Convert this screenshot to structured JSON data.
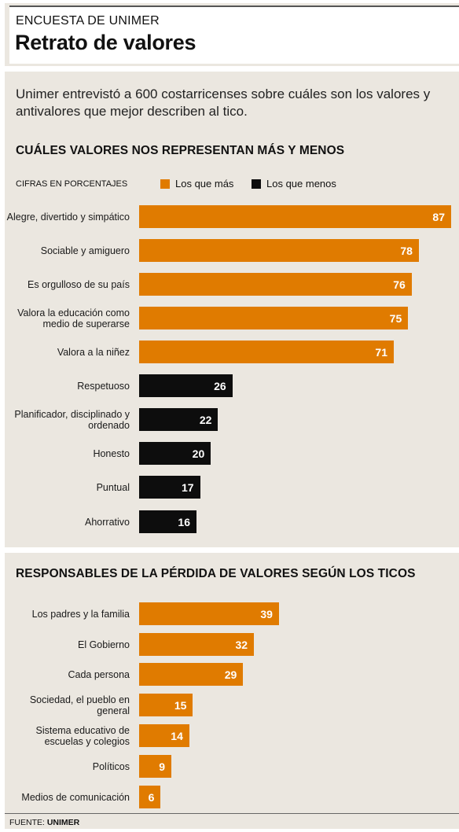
{
  "header": {
    "kicker": "ENCUESTA DE UNIMER",
    "title": "Retrato de valores"
  },
  "intro": "Unimer entrevistó a 600 costarricenses sobre cuáles son los valores y antivalores que mejor describen al tico.",
  "colors": {
    "mas": "#e07b00",
    "menos": "#0d0d0d",
    "panel": "#ebe7e0"
  },
  "chart_data": [
    {
      "type": "bar",
      "orientation": "horizontal",
      "title": "CUÁLES VALORES NOS REPRESENTAN MÁS Y MENOS",
      "note": "CIFRAS EN PORCENTAJES",
      "legend": [
        "Los que más",
        "Los que menos"
      ],
      "legend_placement": "top",
      "xlim": [
        0,
        87
      ],
      "categories": [
        "Alegre, divertido y simpático",
        "Sociable y amiguero",
        "Es orgulloso de su país",
        "Valora la educación como medio de superarse",
        "Valora a la niñez",
        "Respetuoso",
        "Planificador, disciplinado y ordenado",
        "Honesto",
        "Puntual",
        "Ahorrativo"
      ],
      "values": [
        87,
        78,
        76,
        75,
        71,
        26,
        22,
        20,
        17,
        16
      ],
      "groups": [
        "mas",
        "mas",
        "mas",
        "mas",
        "mas",
        "menos",
        "menos",
        "menos",
        "menos",
        "menos"
      ]
    },
    {
      "type": "bar",
      "orientation": "horizontal",
      "title": "RESPONSABLES DE LA PÉRDIDA DE VALORES SEGÚN LOS TICOS",
      "xlim": [
        0,
        87
      ],
      "categories": [
        "Los padres y la familia",
        "El Gobierno",
        "Cada persona",
        "Sociedad, el pueblo en general",
        "Sistema educativo de escuelas y colegios",
        "Políticos",
        "Medios de comunicación"
      ],
      "values": [
        39,
        32,
        29,
        15,
        14,
        9,
        6
      ],
      "groups": [
        "mas",
        "mas",
        "mas",
        "mas",
        "mas",
        "mas",
        "mas"
      ]
    }
  ],
  "footer": {
    "source_label": "FUENTE:",
    "source_name": "UNIMER"
  }
}
